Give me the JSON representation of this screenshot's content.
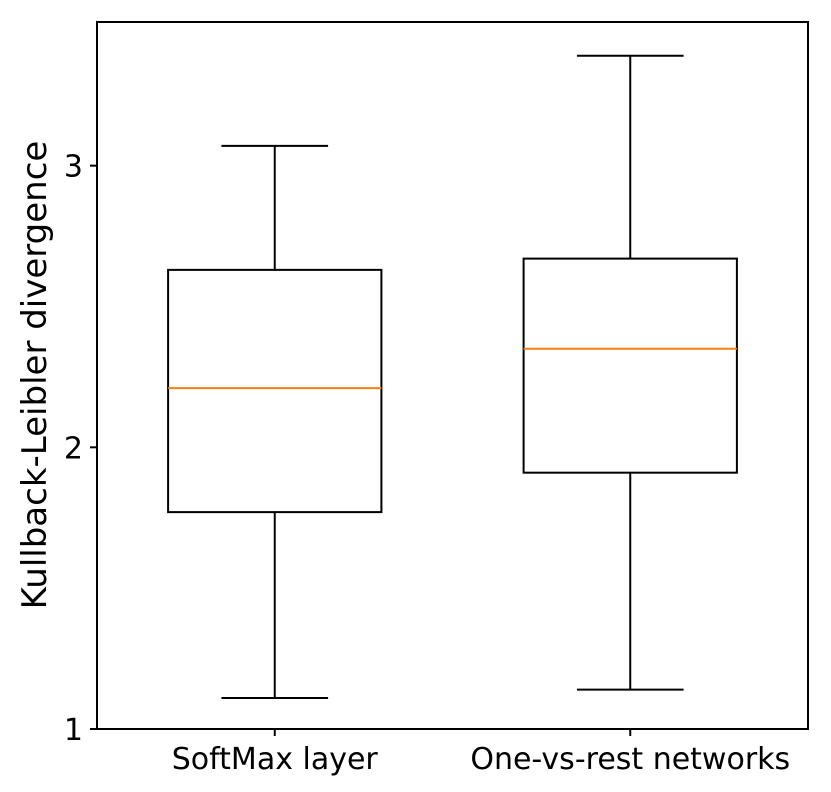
{
  "chart_data": {
    "type": "box",
    "ylabel": "Kullback-Leibler divergence",
    "ylim": [
      1.0,
      3.51
    ],
    "yticks": [
      1,
      2,
      3
    ],
    "ytick_labels": [
      "1",
      "2",
      "3"
    ],
    "grid": false,
    "categories": [
      "SoftMax layer",
      "One-vs-rest networks"
    ],
    "boxes": [
      {
        "whisker_low": 1.11,
        "q1": 1.77,
        "median": 2.21,
        "q3": 2.63,
        "whisker_high": 3.07
      },
      {
        "whisker_low": 1.14,
        "q1": 1.91,
        "median": 2.35,
        "q3": 2.67,
        "whisker_high": 3.39
      }
    ],
    "colors": {
      "box": "#000000",
      "median": "#ff7f0e",
      "axes": "#000000"
    }
  }
}
